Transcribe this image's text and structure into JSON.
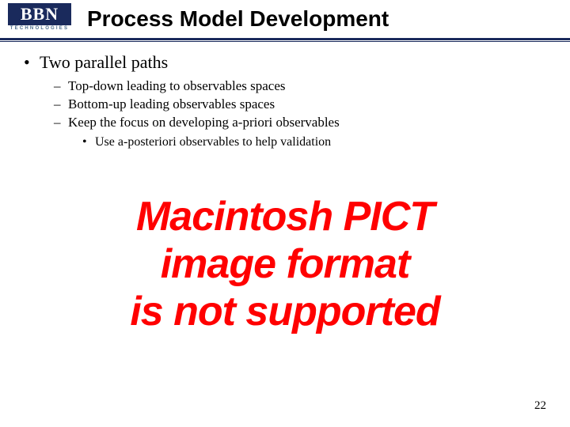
{
  "logo": {
    "main": "BBN",
    "sub": "TECHNOLOGIES"
  },
  "title": "Process Model Development",
  "bullets": {
    "l1_0": "Two parallel paths",
    "l2_0": "Top-down leading to observables spaces",
    "l2_1": "Bottom-up leading observables spaces",
    "l2_2": "Keep the focus on developing a-priori observables",
    "l3_0": "Use a-posteriori observables to help validation"
  },
  "pict": {
    "line1": "Macintosh PICT",
    "line2": "image format",
    "line3": "is not supported"
  },
  "page_number": "22",
  "colors": {
    "logo_bg": "#1a2a5c",
    "rule": "#1a2a5c",
    "pict_text": "#ff0000",
    "background": "#ffffff"
  },
  "fonts": {
    "title_family": "Arial",
    "title_size_pt": 21,
    "body_family": "Times New Roman",
    "pict_family": "Arial",
    "pict_style": "bold italic"
  }
}
